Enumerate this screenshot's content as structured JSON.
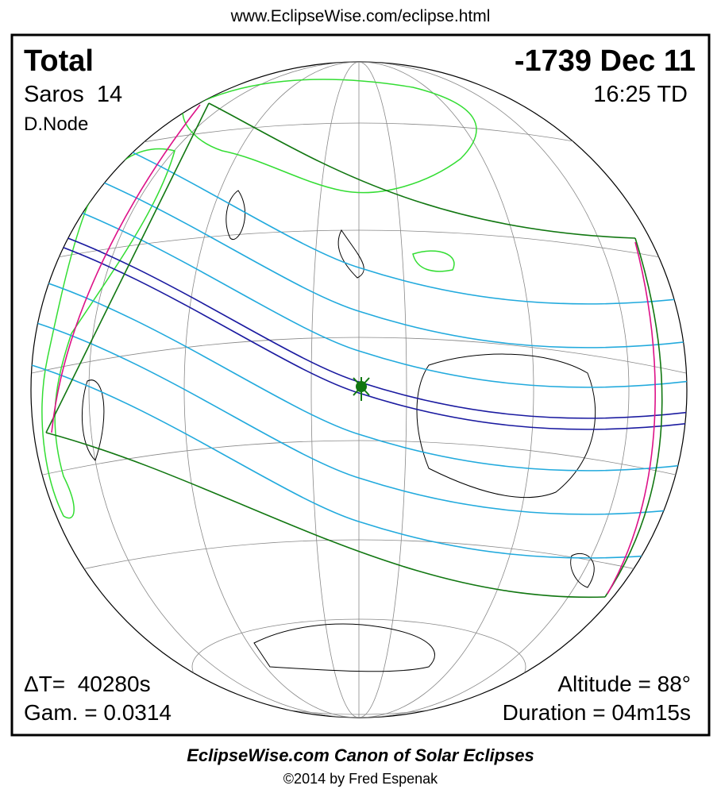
{
  "header": {
    "url": "www.EclipseWise.com/eclipse.html"
  },
  "info": {
    "type": "Total",
    "saros": "Saros  14",
    "node": "D.Node",
    "date": "-1739 Dec 11",
    "time": "16:25 TD",
    "delta_t": "ΔT=  40280s",
    "gamma": "Gam. = 0.0314",
    "altitude": "Altitude = 88°",
    "duration": "Duration = 04m15s"
  },
  "footer": {
    "title": "EclipseWise.com Canon of Solar Eclipses",
    "copyright": "©2014 by Fred Espenak"
  }
}
